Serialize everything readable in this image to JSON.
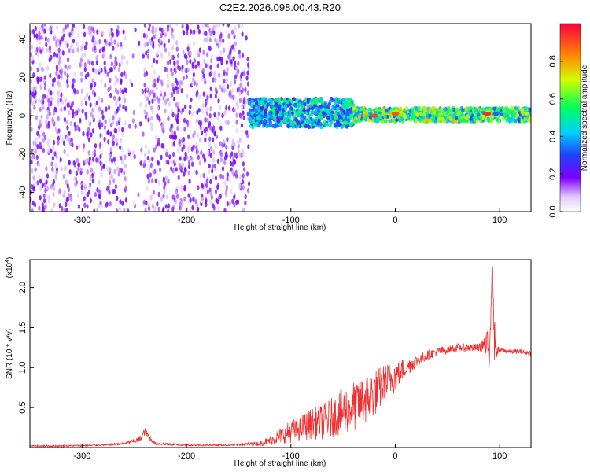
{
  "title": "C2E2.2026.098.00.43.R20",
  "chart_data": [
    {
      "type": "heatmap",
      "title": "C2E2.2026.098.00.43.R20",
      "xlabel": "Height of straight line (km)",
      "ylabel": "Frequency (Hz)",
      "xlim": [
        -350,
        130
      ],
      "ylim": [
        -50,
        48
      ],
      "x_ticks": [
        -300,
        -200,
        -100,
        0,
        100
      ],
      "y_ticks": [
        -40,
        -20,
        0,
        20,
        40
      ],
      "colorbar": {
        "label": "Normalized spectral amplitude",
        "range": [
          0,
          1
        ],
        "ticks": [
          "0.0",
          "0.2",
          "0.4",
          "0.6",
          "0.8"
        ]
      },
      "features": [
        {
          "x_range": [
            -350,
            -140
          ],
          "freq_range": [
            -50,
            48
          ],
          "amplitude": 0.18
        },
        {
          "x_range": [
            -140,
            -40
          ],
          "freq_range": [
            -6,
            9
          ],
          "amplitude": 0.45
        },
        {
          "x_range": [
            -40,
            130
          ],
          "freq_range": [
            -3,
            4
          ],
          "amplitude": 0.6
        },
        {
          "x": -20,
          "freq": 0,
          "amplitude": 0.92
        },
        {
          "x": 0,
          "freq": 1,
          "amplitude": 0.9
        },
        {
          "x": 88,
          "freq": 1,
          "amplitude": 0.95
        }
      ]
    },
    {
      "type": "line",
      "xlabel": "Height of straight line (km)",
      "ylabel": "SNR (10 * v/v)",
      "yunit": "(x10",
      "yunit_exp": "4",
      "xlim": [
        -350,
        130
      ],
      "ylim": [
        0,
        2.35
      ],
      "x_ticks": [
        -300,
        -200,
        -100,
        0,
        100
      ],
      "y_ticks": [
        "0.5",
        "1.0",
        "1.5",
        "2.0"
      ],
      "series": [
        {
          "color": "#f03030",
          "x": [
            -350,
            -320,
            -280,
            -260,
            -250,
            -245,
            -240,
            -235,
            -230,
            -200,
            -160,
            -130,
            -120,
            -110,
            -100,
            -90,
            -80,
            -70,
            -60,
            -50,
            -40,
            -30,
            -20,
            -10,
            0,
            10,
            20,
            30,
            40,
            50,
            60,
            70,
            80,
            85,
            90,
            93,
            95,
            97,
            100,
            110,
            120,
            130
          ],
          "y": [
            0.02,
            0.02,
            0.03,
            0.05,
            0.08,
            0.1,
            0.2,
            0.12,
            0.05,
            0.03,
            0.03,
            0.05,
            0.09,
            0.15,
            0.2,
            0.25,
            0.3,
            0.32,
            0.38,
            0.45,
            0.52,
            0.6,
            0.68,
            0.8,
            0.9,
            1.0,
            1.08,
            1.15,
            1.2,
            1.22,
            1.25,
            1.25,
            1.25,
            1.3,
            1.2,
            2.3,
            1.35,
            1.2,
            1.22,
            1.2,
            1.2,
            1.18
          ],
          "noise": [
            0.01,
            0.01,
            0.01,
            0.02,
            0.03,
            0.04,
            0.05,
            0.04,
            0.02,
            0.01,
            0.01,
            0.03,
            0.06,
            0.1,
            0.14,
            0.16,
            0.2,
            0.22,
            0.25,
            0.3,
            0.32,
            0.33,
            0.3,
            0.25,
            0.2,
            0.12,
            0.08,
            0.06,
            0.06,
            0.05,
            0.05,
            0.05,
            0.05,
            0.1,
            0.3,
            0.1,
            0.3,
            0.08,
            0.03,
            0.03,
            0.03,
            0.03
          ]
        }
      ]
    }
  ]
}
